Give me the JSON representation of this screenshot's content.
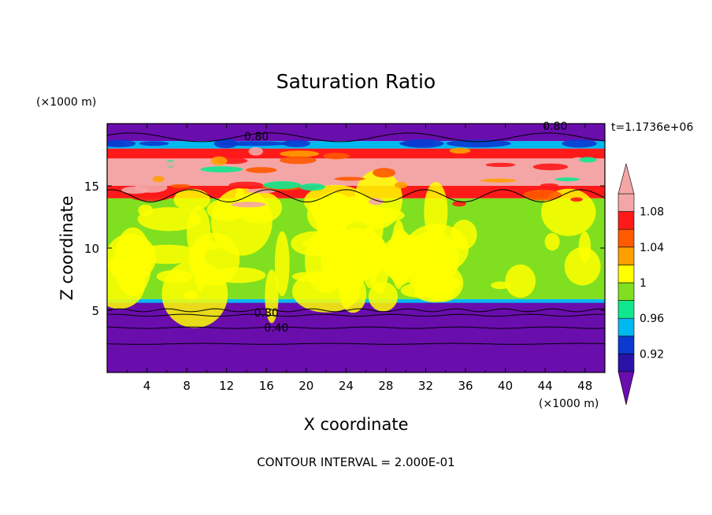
{
  "chart_data": {
    "type": "heatmap",
    "title": "Saturation Ratio",
    "xlabel": "X coordinate",
    "ylabel": "Z coordinate",
    "x_unit": "(×1000 m)",
    "y_unit": "(×1000 m)",
    "x_ticks": [
      4,
      8,
      12,
      16,
      20,
      24,
      28,
      32,
      36,
      40,
      44,
      48
    ],
    "y_ticks": [
      5,
      10,
      15
    ],
    "xlim": [
      0,
      50
    ],
    "ylim": [
      0,
      20
    ],
    "time_label": "t=1.1736e+06",
    "contour_interval_text": "CONTOUR INTERVAL = 2.000E-01",
    "contour_labels": [
      {
        "text": "0.80",
        "x": 15.0,
        "z": 19.0
      },
      {
        "text": "0.80",
        "x": 45.0,
        "z": 19.8
      },
      {
        "text": "0.80",
        "x": 16.0,
        "z": 4.8
      },
      {
        "text": "0.40",
        "x": 17.0,
        "z": 3.6
      }
    ],
    "colorbar": {
      "levels": [
        0.9,
        0.92,
        0.94,
        0.96,
        0.98,
        1.0,
        1.02,
        1.04,
        1.06,
        1.08,
        1.1
      ],
      "tick_labels": [
        "0.92",
        "0.96",
        "1",
        "1.04",
        "1.08"
      ],
      "tick_values": [
        0.92,
        0.96,
        1.0,
        1.04,
        1.08
      ],
      "colors": [
        "#6a0dad",
        "#2a12a8",
        "#0a3ad0",
        "#00b8f0",
        "#10e890",
        "#80e020",
        "#ffff00",
        "#ffa000",
        "#ff5a00",
        "#ff1a1a",
        "#f4a6a6"
      ],
      "under_color": "#6a0dad",
      "over_color": "#f4a6a6"
    },
    "field_bands": [
      {
        "z0": 0.0,
        "z1": 5.6,
        "value": 0.5
      },
      {
        "z0": 5.6,
        "z1": 5.9,
        "value": 0.95
      },
      {
        "z0": 5.9,
        "z1": 14.0,
        "value": 0.99
      },
      {
        "z0": 14.0,
        "z1": 15.0,
        "value": 1.07
      },
      {
        "z0": 15.0,
        "z1": 17.2,
        "value": 1.12
      },
      {
        "z0": 17.2,
        "z1": 18.0,
        "value": 1.06
      },
      {
        "z0": 18.0,
        "z1": 18.6,
        "value": 0.95
      },
      {
        "z0": 18.6,
        "z1": 20.0,
        "value": 0.7
      }
    ]
  }
}
